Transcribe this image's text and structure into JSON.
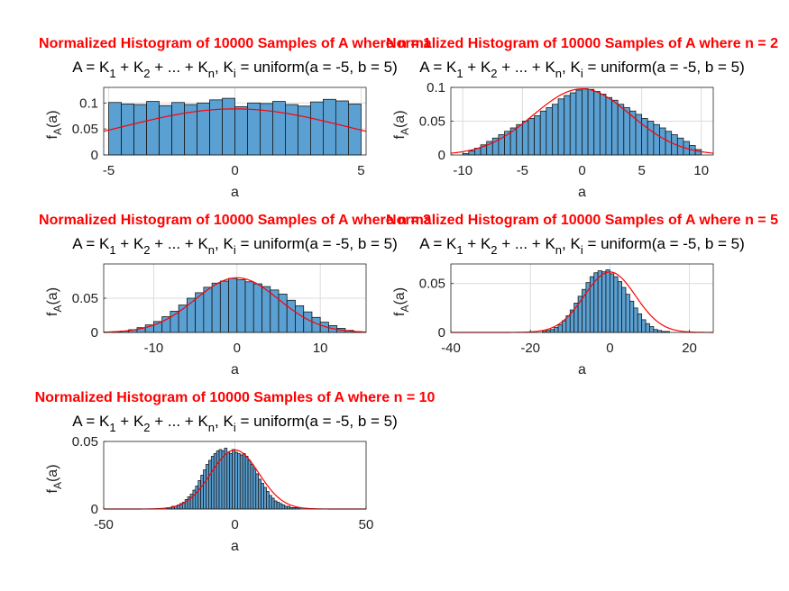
{
  "chart_data": [
    {
      "type": "bar",
      "title": "Normalized Histogram of 10000 Samples of A where n = 1",
      "subtitle_parts": [
        "A = K",
        "1",
        " + K",
        "2",
        " + ... + K",
        "n",
        ", K",
        "i",
        " = uniform(a = -5, b = 5)"
      ],
      "xlabel": "a",
      "ylabel_main": "f",
      "ylabel_sub": "A",
      "ylabel_tail": "(a)",
      "xlim": [
        -5.2,
        5.2
      ],
      "ylim": [
        0,
        0.13
      ],
      "xticks": [
        -5,
        0,
        5
      ],
      "xtick_labels": [
        "-5",
        "0",
        "5"
      ],
      "yticks": [
        0,
        0.05,
        0.1
      ],
      "ytick_labels": [
        "0",
        "0.05",
        "0.1"
      ],
      "grid": true,
      "bin_start": -5,
      "bin_width": 0.5,
      "values": [
        0.101,
        0.098,
        0.097,
        0.103,
        0.095,
        0.101,
        0.097,
        0.1,
        0.106,
        0.109,
        0.093,
        0.1,
        0.099,
        0.103,
        0.097,
        0.094,
        0.102,
        0.107,
        0.104,
        0.098
      ],
      "pdf": {
        "mean": 0,
        "std": 4.5,
        "color": "#ff0000"
      },
      "bar_color": "#5aa0d2"
    },
    {
      "type": "bar",
      "title": "Normalized Histogram of 10000 Samples of A where n = 2",
      "subtitle_parts": [
        "A = K",
        "1",
        " + K",
        "2",
        " + ... + K",
        "n",
        ", K",
        "i",
        " = uniform(a = -5, b = 5)"
      ],
      "xlabel": "a",
      "ylabel_main": "f",
      "ylabel_sub": "A",
      "ylabel_tail": "(a)",
      "xlim": [
        -11,
        11
      ],
      "ylim": [
        0,
        0.1
      ],
      "xticks": [
        -10,
        -5,
        0,
        5,
        10
      ],
      "xtick_labels": [
        "-10",
        "-5",
        "0",
        "5",
        "10"
      ],
      "yticks": [
        0,
        0.05,
        0.1
      ],
      "ytick_labels": [
        "0",
        "0.05",
        "0.1"
      ],
      "grid": true,
      "bin_start": -10,
      "bin_width": 0.5,
      "values": [
        0.002,
        0.006,
        0.01,
        0.015,
        0.02,
        0.025,
        0.03,
        0.035,
        0.04,
        0.045,
        0.05,
        0.054,
        0.058,
        0.065,
        0.07,
        0.075,
        0.083,
        0.088,
        0.092,
        0.096,
        0.098,
        0.097,
        0.094,
        0.09,
        0.085,
        0.081,
        0.075,
        0.07,
        0.065,
        0.06,
        0.054,
        0.05,
        0.045,
        0.04,
        0.035,
        0.03,
        0.025,
        0.02,
        0.014,
        0.008
      ],
      "pdf": {
        "mean": 0,
        "std": 4.08,
        "color": "#ff0000"
      },
      "bar_color": "#5aa0d2"
    },
    {
      "type": "bar",
      "title": "Normalized Histogram of 10000 Samples of A where n = 3",
      "subtitle_parts": [
        "A = K",
        "1",
        " + K",
        "2",
        " + ... + K",
        "n",
        ", K",
        "i",
        " = uniform(a = -5, b = 5)"
      ],
      "xlabel": "a",
      "ylabel_main": "f",
      "ylabel_sub": "A",
      "ylabel_tail": "(a)",
      "xlim": [
        -16,
        15.5
      ],
      "ylim": [
        0,
        0.1
      ],
      "xticks": [
        -10,
        0,
        10
      ],
      "xtick_labels": [
        "-10",
        "0",
        "10"
      ],
      "yticks": [
        0,
        0.05
      ],
      "ytick_labels": [
        "0",
        "0.05"
      ],
      "grid": true,
      "bin_start": -15,
      "bin_width": 1,
      "values": [
        0.001,
        0.002,
        0.004,
        0.007,
        0.011,
        0.016,
        0.023,
        0.031,
        0.04,
        0.05,
        0.058,
        0.066,
        0.072,
        0.075,
        0.079,
        0.077,
        0.074,
        0.071,
        0.067,
        0.062,
        0.056,
        0.047,
        0.039,
        0.03,
        0.022,
        0.015,
        0.01,
        0.006,
        0.003,
        0.001
      ],
      "pdf": {
        "mean": 0,
        "std": 5.0,
        "color": "#ff0000"
      },
      "bar_color": "#5aa0d2"
    },
    {
      "type": "bar",
      "title": "Normalized Histogram of 10000 Samples of A where n = 5",
      "subtitle_parts": [
        "A = K",
        "1",
        " + K",
        "2",
        " + ... + K",
        "n",
        ", K",
        "i",
        " = uniform(a = -5, b = 5)"
      ],
      "xlabel": "a",
      "ylabel_main": "f",
      "ylabel_sub": "A",
      "ylabel_tail": "(a)",
      "xlim": [
        -40,
        26
      ],
      "ylim": [
        0,
        0.07
      ],
      "xticks": [
        -40,
        -20,
        0,
        20
      ],
      "xtick_labels": [
        "-40",
        "-20",
        "0",
        "20"
      ],
      "yticks": [
        0,
        0.05
      ],
      "ytick_labels": [
        "0",
        "0.05"
      ],
      "grid": true,
      "bin_start": -17,
      "bin_width": 1,
      "values": [
        0.001,
        0.002,
        0.003,
        0.005,
        0.008,
        0.012,
        0.017,
        0.023,
        0.03,
        0.037,
        0.044,
        0.051,
        0.057,
        0.061,
        0.063,
        0.062,
        0.064,
        0.06,
        0.057,
        0.052,
        0.046,
        0.039,
        0.032,
        0.025,
        0.019,
        0.013,
        0.009,
        0.006,
        0.003,
        0.002,
        0.001,
        0.001
      ],
      "pdf": {
        "mean": 0,
        "std": 6.45,
        "color": "#ff0000"
      },
      "bar_color": "#5aa0d2"
    },
    {
      "type": "bar",
      "title": "Normalized Histogram of 10000 Samples of A where n = 10",
      "subtitle_parts": [
        "A = K",
        "1",
        " + K",
        "2",
        " + ... + K",
        "n",
        ", K",
        "i",
        " = uniform(a = -5, b = 5)"
      ],
      "xlabel": "a",
      "ylabel_main": "f",
      "ylabel_sub": "A",
      "ylabel_tail": "(a)",
      "xlim": [
        -50,
        50
      ],
      "ylim": [
        0,
        0.05
      ],
      "xticks": [
        -50,
        0,
        50
      ],
      "xtick_labels": [
        "-50",
        "0",
        "50"
      ],
      "yticks": [
        0,
        0.05
      ],
      "ytick_labels": [
        "0",
        "0.05"
      ],
      "grid": true,
      "bin_start": -26,
      "bin_width": 1,
      "values": [
        0.001,
        0.001,
        0.002,
        0.002,
        0.003,
        0.004,
        0.005,
        0.007,
        0.009,
        0.011,
        0.014,
        0.017,
        0.021,
        0.025,
        0.029,
        0.033,
        0.036,
        0.039,
        0.041,
        0.043,
        0.044,
        0.043,
        0.045,
        0.042,
        0.041,
        0.044,
        0.042,
        0.041,
        0.04,
        0.041,
        0.039,
        0.036,
        0.033,
        0.03,
        0.026,
        0.022,
        0.019,
        0.016,
        0.013,
        0.01,
        0.008,
        0.006,
        0.005,
        0.004,
        0.003,
        0.002,
        0.002,
        0.001,
        0.001,
        0.001,
        0.001
      ],
      "pdf": {
        "mean": 0,
        "std": 9.13,
        "color": "#ff0000"
      },
      "bar_color": "#5aa0d2"
    }
  ]
}
